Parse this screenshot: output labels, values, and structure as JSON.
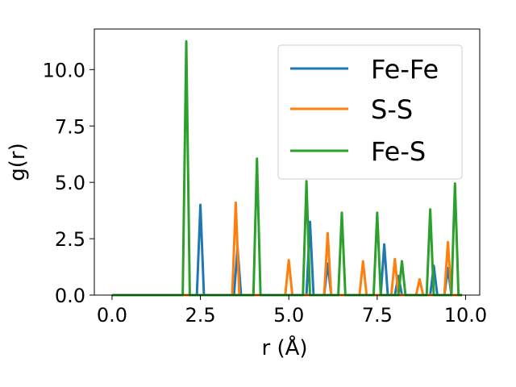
{
  "chart_data": {
    "type": "line",
    "xlabel": "r (Å)",
    "ylabel": "g(r)",
    "xlim": [
      -0.5,
      10.4
    ],
    "ylim": [
      0,
      11.8
    ],
    "xticks": [
      0.0,
      2.5,
      5.0,
      7.5,
      10.0
    ],
    "xtick_labels": [
      "0.0",
      "2.5",
      "5.0",
      "7.5",
      "10.0"
    ],
    "yticks": [
      0.0,
      2.5,
      5.0,
      7.5,
      10.0
    ],
    "ytick_labels": [
      "0.0",
      "2.5",
      "5.0",
      "7.5",
      "10.0"
    ],
    "grid": false,
    "legend_position": "top-right",
    "series": [
      {
        "name": "Fe-Fe",
        "color": "#1f77b4",
        "x": [
          0.0,
          2.4,
          2.5,
          2.6,
          3.45,
          3.55,
          3.65,
          5.5,
          5.6,
          5.7,
          6.0,
          6.1,
          6.2,
          7.6,
          7.7,
          7.8,
          8.0,
          8.1,
          8.2,
          9.0,
          9.1,
          9.2,
          9.4,
          9.5,
          9.6,
          9.9
        ],
        "y": [
          0.0,
          0.0,
          4.0,
          0.0,
          0.0,
          2.1,
          0.0,
          0.0,
          3.25,
          0.0,
          0.0,
          1.4,
          0.0,
          0.0,
          2.25,
          0.0,
          0.0,
          0.85,
          0.0,
          0.0,
          1.3,
          0.0,
          0.0,
          1.2,
          0.0,
          0.0
        ]
      },
      {
        "name": "S-S",
        "color": "#ff7f0e",
        "x": [
          0.0,
          3.4,
          3.5,
          3.6,
          4.9,
          5.0,
          5.1,
          6.0,
          6.1,
          6.2,
          7.0,
          7.1,
          7.2,
          7.9,
          8.0,
          8.1,
          8.6,
          8.7,
          8.8,
          9.4,
          9.5,
          9.6,
          9.9
        ],
        "y": [
          0.0,
          0.0,
          4.1,
          0.0,
          0.0,
          1.55,
          0.0,
          0.0,
          2.75,
          0.0,
          0.0,
          1.5,
          0.0,
          0.0,
          1.6,
          0.0,
          0.0,
          0.7,
          0.0,
          0.0,
          2.35,
          0.0,
          0.0
        ]
      },
      {
        "name": "Fe-S",
        "color": "#2ca02c",
        "x": [
          0.0,
          2.0,
          2.1,
          2.2,
          4.0,
          4.1,
          4.2,
          5.4,
          5.5,
          5.6,
          6.4,
          6.5,
          6.6,
          7.4,
          7.5,
          7.6,
          8.1,
          8.2,
          8.3,
          8.9,
          9.0,
          9.1,
          9.6,
          9.7,
          9.8,
          9.9
        ],
        "y": [
          0.0,
          0.0,
          11.25,
          0.0,
          0.0,
          6.05,
          0.0,
          0.0,
          5.05,
          0.0,
          0.0,
          3.65,
          0.0,
          0.0,
          3.65,
          0.0,
          0.0,
          1.5,
          0.0,
          0.0,
          3.8,
          0.0,
          0.0,
          4.95,
          0.0,
          0.0
        ]
      }
    ]
  }
}
